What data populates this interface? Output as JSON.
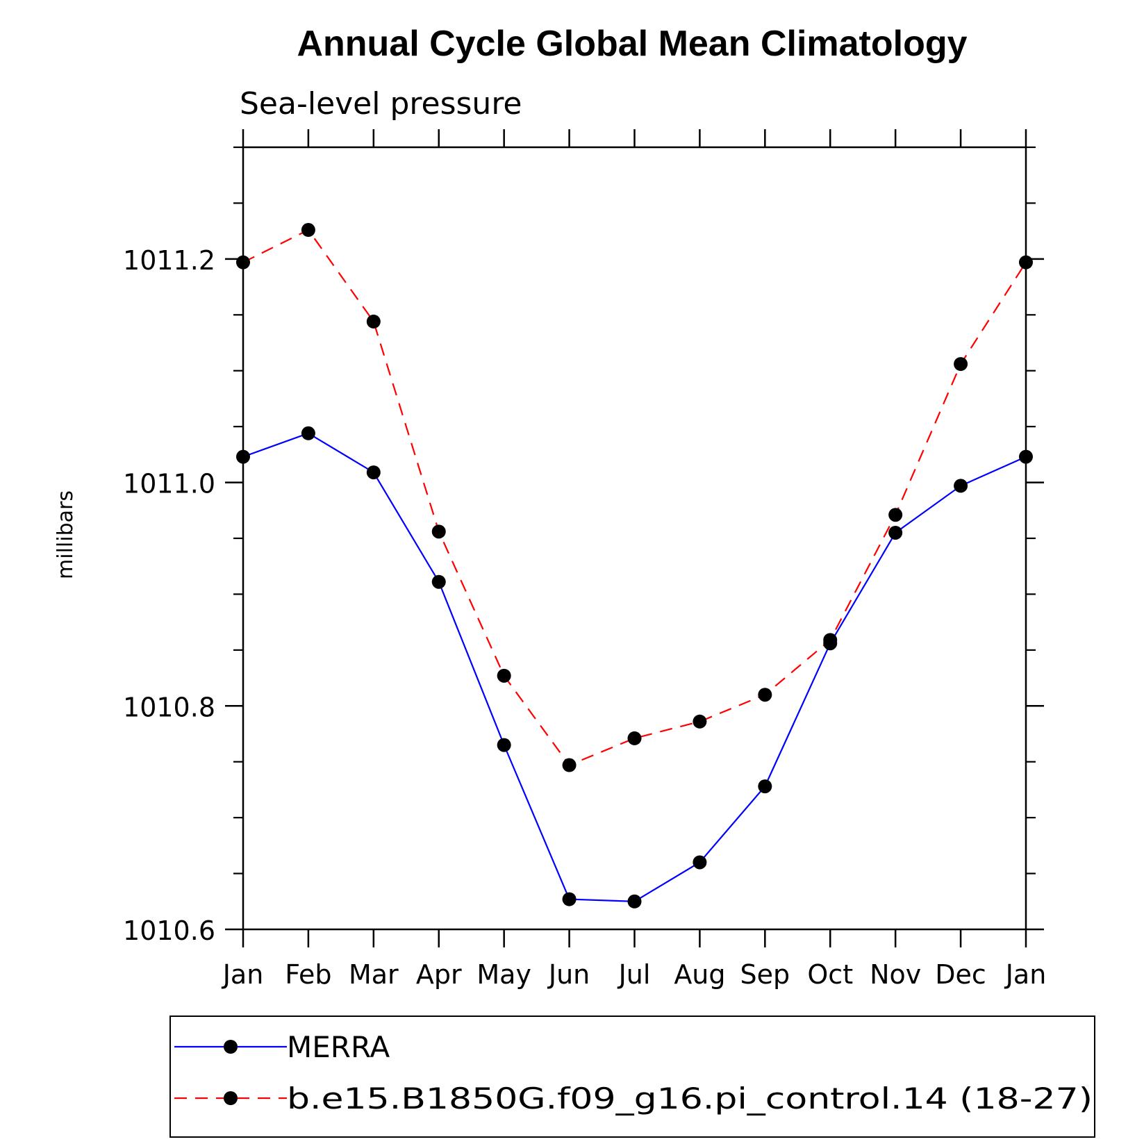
{
  "chart_data": {
    "type": "line",
    "title": "Annual Cycle Global Mean Climatology",
    "subtitle": "Sea-level pressure",
    "xlabel": "",
    "ylabel": "millibars",
    "categories": [
      "Jan",
      "Feb",
      "Mar",
      "Apr",
      "May",
      "Jun",
      "Jul",
      "Aug",
      "Sep",
      "Oct",
      "Nov",
      "Dec",
      "Jan"
    ],
    "ylim": [
      1010.6,
      1011.3
    ],
    "y_ticks": [
      "1010.6",
      "1010.8",
      "1011.0",
      "1011.2"
    ],
    "y_tick_values": [
      1010.6,
      1010.8,
      1011.0,
      1011.2
    ],
    "y_minor_step": 0.05,
    "grid": false,
    "legend_position": "bottom",
    "series": [
      {
        "name": "MERRA",
        "color": "#0000ff",
        "dash": "solid",
        "marker": "filled-circle",
        "values": [
          1011.023,
          1011.044,
          1011.009,
          1010.911,
          1010.765,
          1010.627,
          1010.625,
          1010.66,
          1010.728,
          1010.856,
          1010.955,
          1010.997,
          1011.023
        ]
      },
      {
        "name": "b.e15.B1850G.f09_g16.pi_control.14 (18-27)",
        "color": "#ff0000",
        "dash": "dashed",
        "marker": "filled-circle",
        "values": [
          1011.197,
          1011.226,
          1011.144,
          1010.956,
          1010.827,
          1010.747,
          1010.771,
          1010.786,
          1010.81,
          1010.859,
          1010.971,
          1011.106,
          1011.197
        ]
      }
    ]
  }
}
